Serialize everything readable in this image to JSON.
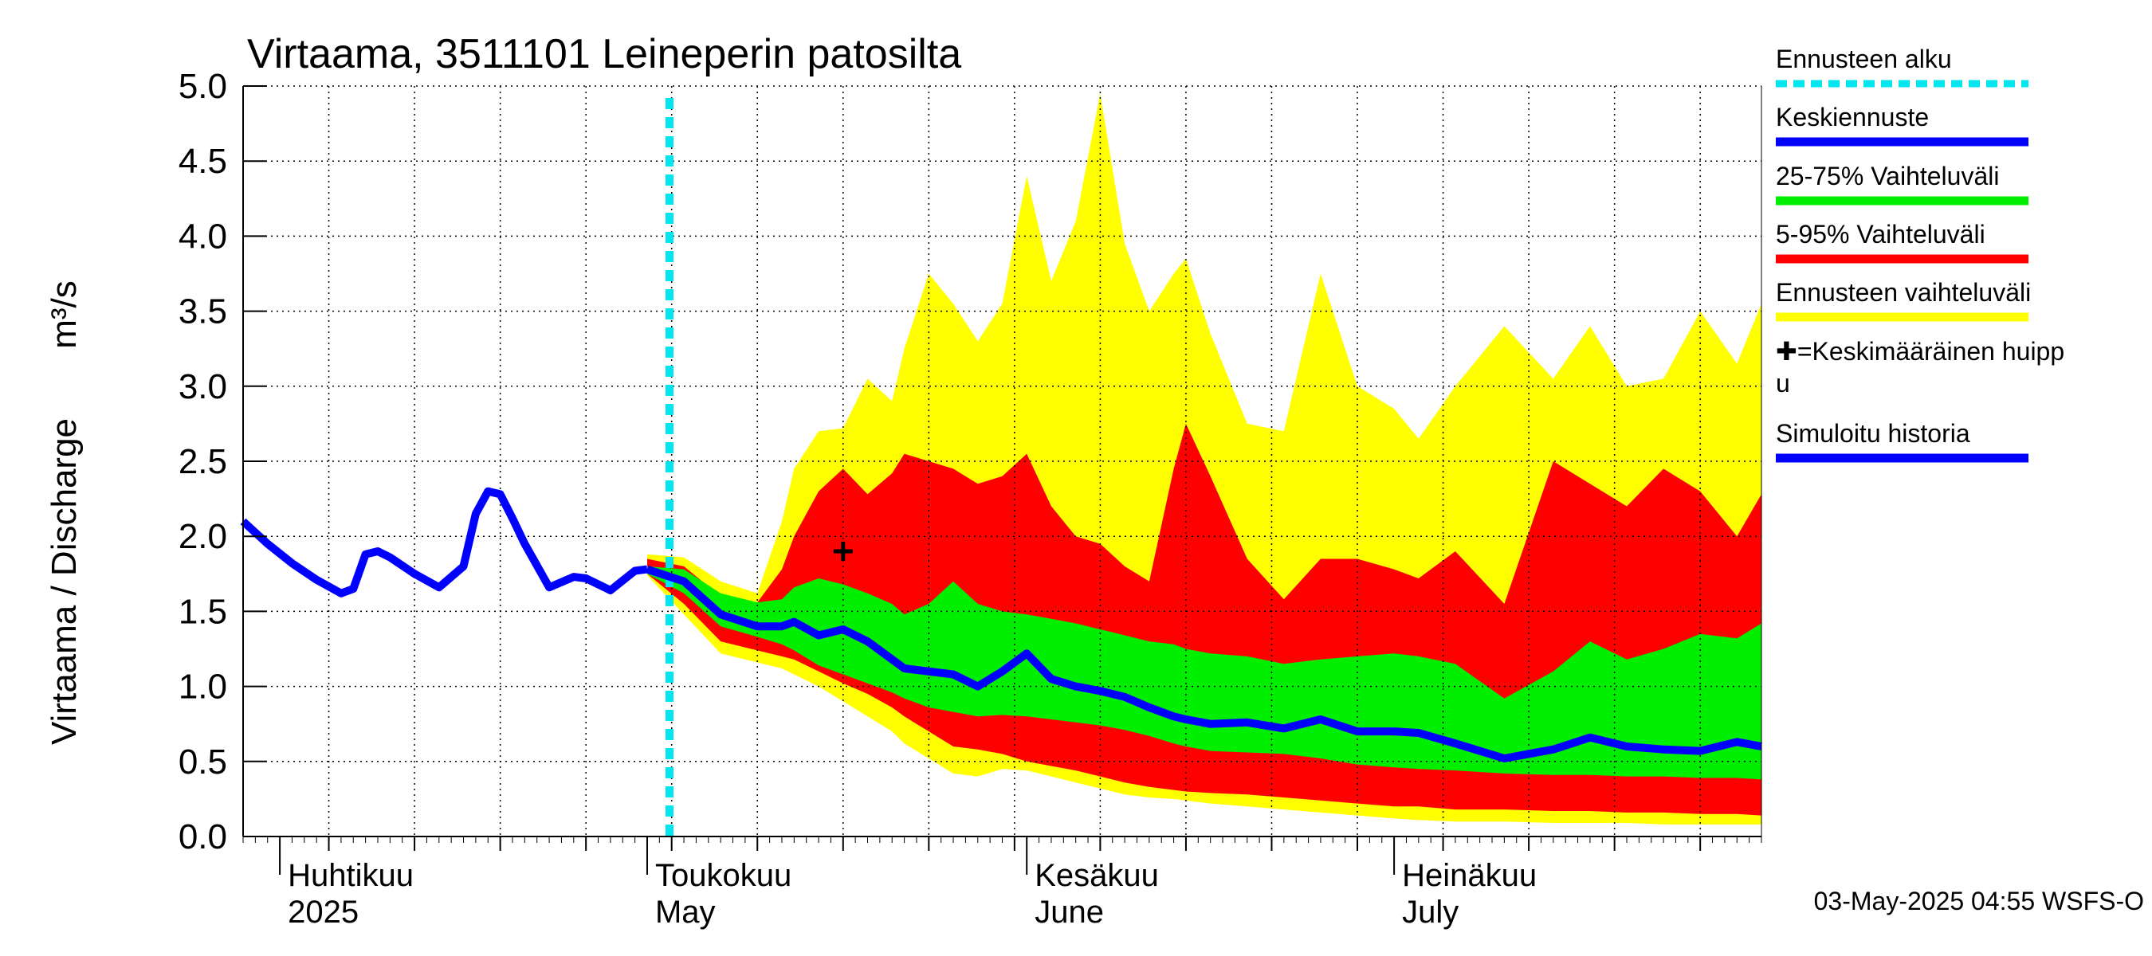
{
  "chart_data": {
    "type": "area",
    "title": "Virtaama, 3511101 Leineperin patosilta",
    "ylabel": "Virtaama / Discharge",
    "yunit": "m³/s",
    "ylim": [
      0,
      5
    ],
    "yticks": [
      0.0,
      0.5,
      1.0,
      1.5,
      2.0,
      2.5,
      3.0,
      3.5,
      4.0,
      4.5,
      5.0
    ],
    "ytick_labels": [
      "0.0",
      "0.5",
      "1.0",
      "1.5",
      "2.0",
      "2.5",
      "3.0",
      "3.5",
      "4.0",
      "4.5",
      "5.0"
    ],
    "xlim": [
      "2025-03-29",
      "2025-07-31"
    ],
    "x_month_labels": [
      {
        "date": "2025-04-01",
        "fi": "Huhtikuu",
        "en": "2025"
      },
      {
        "date": "2025-05-01",
        "fi": "Toukokuu",
        "en": "May"
      },
      {
        "date": "2025-06-01",
        "fi": "Kesäkuu",
        "en": "June"
      },
      {
        "date": "2025-07-01",
        "fi": "Heinäkuu",
        "en": "July"
      }
    ],
    "forecast_start": "2025-05-01",
    "peak_marker": {
      "date": "2025-05-17",
      "value": 1.9
    },
    "footer": "03-May-2025 04:55 WSFS-O",
    "colors": {
      "forecast_start": "#00e5ee",
      "mean": "#0000ff",
      "iqr": "#00ee00",
      "p5_95": "#ff0000",
      "range": "#ffff00",
      "history": "#0000ff"
    },
    "legend": [
      {
        "label": "Ennusteen alku",
        "style": "dashed",
        "color": "#00e5ee"
      },
      {
        "label": "Keskiennuste",
        "style": "line",
        "color": "#0000ff"
      },
      {
        "label": "25-75% Vaihteluväli",
        "style": "line",
        "color": "#00ee00"
      },
      {
        "label": "5-95% Vaihteluväli",
        "style": "line",
        "color": "#ff0000"
      },
      {
        "label": "Ennusteen vaihteluväli",
        "style": "line",
        "color": "#ffff00"
      },
      {
        "label": "✚=Keskimääräinen huipp",
        "label2": "u",
        "style": "none",
        "color": "#000000"
      },
      {
        "label": "Simuloitu historia",
        "style": "line",
        "color": "#0000ff"
      }
    ],
    "history": {
      "name": "Simuloitu historia",
      "x": [
        "2025-03-29",
        "2025-03-31",
        "2025-04-02",
        "2025-04-04",
        "2025-04-06",
        "2025-04-07",
        "2025-04-08",
        "2025-04-09",
        "2025-04-10",
        "2025-04-12",
        "2025-04-14",
        "2025-04-16",
        "2025-04-17",
        "2025-04-18",
        "2025-04-19",
        "2025-04-20",
        "2025-04-21",
        "2025-04-23",
        "2025-04-25",
        "2025-04-26",
        "2025-04-28",
        "2025-04-30",
        "2025-05-01"
      ],
      "values": [
        2.1,
        1.95,
        1.82,
        1.71,
        1.62,
        1.65,
        1.88,
        1.9,
        1.86,
        1.75,
        1.66,
        1.8,
        2.15,
        2.3,
        2.28,
        2.12,
        1.95,
        1.66,
        1.73,
        1.72,
        1.64,
        1.77,
        1.78
      ]
    },
    "forecast": {
      "x": [
        "2025-05-01",
        "2025-05-04",
        "2025-05-07",
        "2025-05-10",
        "2025-05-12",
        "2025-05-13",
        "2025-05-15",
        "2025-05-17",
        "2025-05-19",
        "2025-05-21",
        "2025-05-22",
        "2025-05-24",
        "2025-05-26",
        "2025-05-28",
        "2025-05-30",
        "2025-06-01",
        "2025-06-03",
        "2025-06-05",
        "2025-06-07",
        "2025-06-09",
        "2025-06-11",
        "2025-06-13",
        "2025-06-14",
        "2025-06-16",
        "2025-06-19",
        "2025-06-22",
        "2025-06-25",
        "2025-06-28",
        "2025-07-01",
        "2025-07-03",
        "2025-07-06",
        "2025-07-10",
        "2025-07-14",
        "2025-07-17",
        "2025-07-20",
        "2025-07-23",
        "2025-07-26",
        "2025-07-29",
        "2025-07-31"
      ],
      "mean": [
        1.78,
        1.7,
        1.48,
        1.4,
        1.4,
        1.43,
        1.34,
        1.38,
        1.3,
        1.18,
        1.12,
        1.1,
        1.08,
        1.0,
        1.1,
        1.22,
        1.05,
        1.0,
        0.97,
        0.93,
        0.86,
        0.8,
        0.78,
        0.75,
        0.76,
        0.72,
        0.78,
        0.7,
        0.7,
        0.69,
        0.62,
        0.52,
        0.58,
        0.66,
        0.6,
        0.58,
        0.57,
        0.63,
        0.6
      ],
      "p25": [
        1.75,
        1.62,
        1.4,
        1.33,
        1.28,
        1.24,
        1.14,
        1.08,
        1.02,
        0.96,
        0.92,
        0.86,
        0.83,
        0.8,
        0.81,
        0.8,
        0.78,
        0.76,
        0.74,
        0.71,
        0.67,
        0.62,
        0.6,
        0.57,
        0.56,
        0.55,
        0.52,
        0.48,
        0.46,
        0.45,
        0.44,
        0.42,
        0.41,
        0.41,
        0.4,
        0.4,
        0.39,
        0.39,
        0.38
      ],
      "p75": [
        1.8,
        1.78,
        1.62,
        1.56,
        1.58,
        1.66,
        1.72,
        1.68,
        1.62,
        1.55,
        1.48,
        1.55,
        1.7,
        1.55,
        1.5,
        1.48,
        1.45,
        1.42,
        1.38,
        1.34,
        1.3,
        1.28,
        1.25,
        1.22,
        1.2,
        1.15,
        1.18,
        1.2,
        1.22,
        1.2,
        1.15,
        0.92,
        1.1,
        1.3,
        1.18,
        1.25,
        1.35,
        1.32,
        1.42
      ],
      "p5": [
        1.75,
        1.55,
        1.3,
        1.24,
        1.2,
        1.18,
        1.1,
        1.02,
        0.95,
        0.86,
        0.8,
        0.7,
        0.6,
        0.58,
        0.55,
        0.5,
        0.47,
        0.44,
        0.4,
        0.36,
        0.33,
        0.31,
        0.3,
        0.29,
        0.28,
        0.26,
        0.24,
        0.22,
        0.2,
        0.2,
        0.18,
        0.18,
        0.17,
        0.17,
        0.16,
        0.16,
        0.15,
        0.15,
        0.14
      ],
      "p95": [
        1.85,
        1.8,
        1.6,
        1.56,
        1.78,
        2.0,
        2.3,
        2.45,
        2.28,
        2.42,
        2.55,
        2.5,
        2.45,
        2.35,
        2.4,
        2.55,
        2.2,
        2.0,
        1.95,
        1.8,
        1.7,
        2.45,
        2.75,
        2.4,
        1.85,
        1.58,
        1.85,
        1.85,
        1.78,
        1.72,
        1.9,
        1.55,
        2.5,
        2.35,
        2.2,
        2.45,
        2.3,
        2.0,
        2.28
      ],
      "min": [
        1.74,
        1.48,
        1.22,
        1.16,
        1.12,
        1.08,
        1.0,
        0.9,
        0.8,
        0.7,
        0.62,
        0.52,
        0.42,
        0.4,
        0.45,
        0.44,
        0.4,
        0.36,
        0.32,
        0.28,
        0.26,
        0.25,
        0.24,
        0.22,
        0.2,
        0.18,
        0.16,
        0.14,
        0.12,
        0.11,
        0.1,
        0.1,
        0.09,
        0.09,
        0.09,
        0.08,
        0.08,
        0.08,
        0.08
      ],
      "max": [
        1.88,
        1.86,
        1.7,
        1.62,
        2.1,
        2.45,
        2.7,
        2.72,
        3.05,
        2.9,
        3.25,
        3.75,
        3.55,
        3.3,
        3.55,
        4.4,
        3.7,
        4.1,
        4.95,
        3.95,
        3.5,
        3.75,
        3.85,
        3.35,
        2.75,
        2.7,
        3.75,
        3.0,
        2.85,
        2.65,
        3.0,
        3.4,
        3.05,
        3.4,
        3.0,
        3.05,
        3.5,
        3.15,
        3.55
      ]
    }
  }
}
